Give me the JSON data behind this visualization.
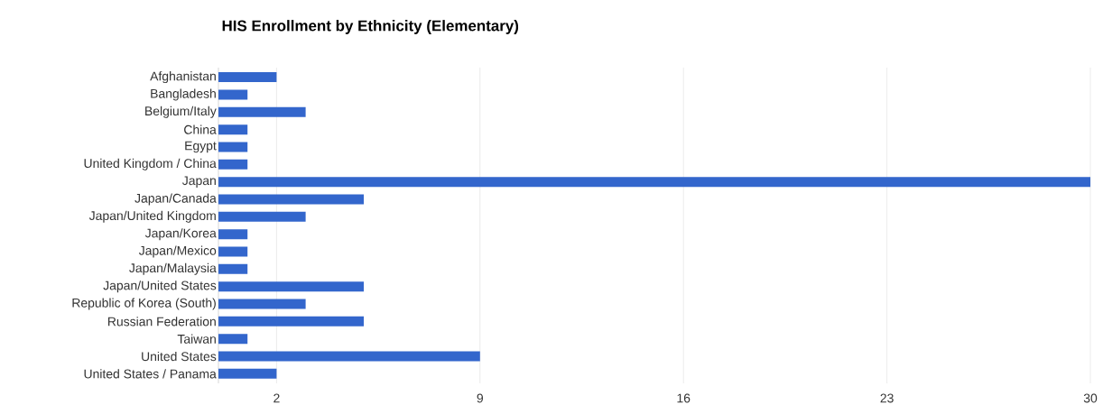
{
  "chart_data": {
    "type": "bar",
    "orientation": "horizontal",
    "title": "HIS Enrollment by Ethnicity (Elementary)",
    "categories": [
      "Afghanistan",
      "Bangladesh",
      "Belgium/Italy",
      "China",
      "Egypt",
      "United Kingdom / China",
      "Japan",
      "Japan/Canada",
      "Japan/United Kingdom",
      "Japan/Korea",
      "Japan/Mexico",
      "Japan/Malaysia",
      "Japan/United States",
      "Republic of Korea (South)",
      "Russian Federation",
      "Taiwan",
      "United States",
      "United States / Panama"
    ],
    "values": [
      2,
      1,
      3,
      1,
      1,
      1,
      30,
      5,
      3,
      1,
      1,
      1,
      5,
      3,
      5,
      1,
      9,
      2
    ],
    "color": "#3366cc",
    "xlim": [
      0,
      30
    ],
    "xticks": [
      2,
      9,
      16,
      23,
      30
    ],
    "grid": "x"
  }
}
